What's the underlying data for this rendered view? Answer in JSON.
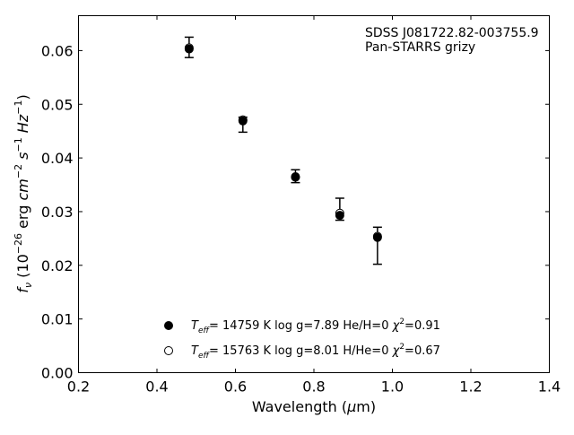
{
  "chart_data": {
    "type": "scatter",
    "annotations": [
      "SDSS J081722.82-003755.9",
      "Pan-STARRS grizy"
    ],
    "xlabel": {
      "main": "Wavelength (",
      "mu": "μ",
      "rest": "m)"
    },
    "ylabel": {
      "f": "f",
      "nu": "ν",
      "open": " (10",
      "e1": "−26",
      "erg": " erg ",
      "cm": "cm",
      "e2": "−2",
      "s": " s",
      "e3": "−1",
      "hz": " Hz",
      "e4": "−1",
      "close": ")"
    },
    "xlim": [
      0.2,
      1.4
    ],
    "ylim": [
      0.0,
      0.0665
    ],
    "xticks": [
      0.2,
      0.4,
      0.6,
      0.8,
      1.0,
      1.2,
      1.4
    ],
    "xtick_labels": [
      "0.2",
      "0.4",
      "0.6",
      "0.8",
      "1.0",
      "1.2",
      "1.4"
    ],
    "yticks": [
      0.0,
      0.01,
      0.02,
      0.03,
      0.04,
      0.05,
      0.06
    ],
    "ytick_labels": [
      "0.00",
      "0.01",
      "0.02",
      "0.03",
      "0.04",
      "0.05",
      "0.06"
    ],
    "grid": false,
    "legend_position": "bottom-center",
    "observed": {
      "x": [
        0.482,
        0.619,
        0.753,
        0.866,
        0.962
      ],
      "y": [
        0.0604,
        0.047,
        0.0364,
        0.0294,
        0.0253
      ],
      "err_low": [
        0.0017,
        0.0022,
        0.001,
        0.001,
        0.0051
      ],
      "err_high": [
        0.0021,
        0.0006,
        0.0014,
        0.0031,
        0.0018
      ]
    },
    "series": [
      {
        "marker": "filled",
        "teff": "14759",
        "logg": "7.89",
        "comp": "He/H=0",
        "chi2": "0.91",
        "x": [
          0.482,
          0.619,
          0.753,
          0.866,
          0.962
        ],
        "y": [
          0.0603,
          0.0469,
          0.0364,
          0.0293,
          0.0252
        ]
      },
      {
        "marker": "open",
        "teff": "15763",
        "logg": "8.01",
        "comp": "H/He=0",
        "chi2": "0.67",
        "x": [
          0.482,
          0.619,
          0.753,
          0.866,
          0.962
        ],
        "y": [
          0.0605,
          0.0471,
          0.0365,
          0.0297,
          0.0254
        ]
      }
    ],
    "legend_text": {
      "T": "T",
      "eff": "eff",
      "eq": "= ",
      "k": " K  log g=",
      "chi": "χ",
      "sq": "2",
      "eqc": "="
    }
  }
}
